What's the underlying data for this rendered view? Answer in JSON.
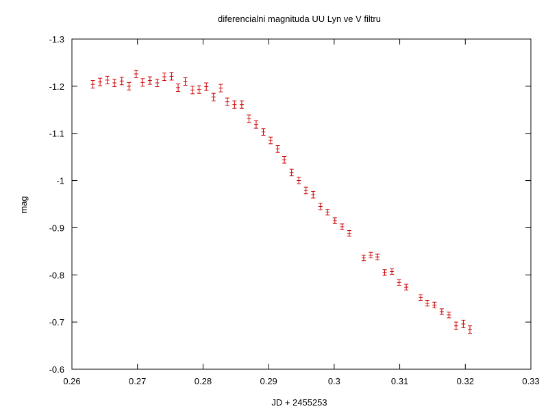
{
  "chart_data": {
    "type": "scatter",
    "title": "diferencialni magnituda UU Lyn ve V filtru",
    "xlabel": "JD + 2455253",
    "ylabel": "mag",
    "xlim": [
      0.26,
      0.33
    ],
    "ylim": [
      -1.3,
      -0.6
    ],
    "y_inverted": true,
    "grid": false,
    "point_color": "#cc0000",
    "x_ticks": [
      0.26,
      0.27,
      0.28,
      0.29,
      0.3,
      0.31,
      0.32,
      0.33
    ],
    "x_tick_labels": [
      "0.26",
      "0.27",
      "0.28",
      "0.29",
      "0.3",
      "0.31",
      "0.32",
      "0.33"
    ],
    "y_ticks": [
      -1.3,
      -1.2,
      -1.1,
      -1.0,
      -0.9,
      -0.8,
      -0.7,
      -0.6
    ],
    "y_tick_labels": [
      "-1.3",
      "-1.2",
      "-1.1",
      "-1",
      "-0.9",
      "-0.8",
      "-0.7",
      "-0.6"
    ],
    "x": [
      0.2632,
      0.2643,
      0.2654,
      0.2665,
      0.2676,
      0.2687,
      0.2698,
      0.2708,
      0.2719,
      0.273,
      0.2741,
      0.2752,
      0.2762,
      0.2773,
      0.2784,
      0.2794,
      0.2805,
      0.2816,
      0.2827,
      0.2837,
      0.2848,
      0.2859,
      0.287,
      0.2881,
      0.2892,
      0.2903,
      0.2914,
      0.2924,
      0.2935,
      0.2946,
      0.2957,
      0.2968,
      0.2979,
      0.299,
      0.3001,
      0.3012,
      0.3023,
      0.3045,
      0.3056,
      0.3066,
      0.3077,
      0.3088,
      0.3099,
      0.311,
      0.3132,
      0.3142,
      0.3153,
      0.3164,
      0.3175,
      0.3186,
      0.3197,
      0.3207
    ],
    "y": [
      -1.204,
      -1.209,
      -1.213,
      -1.207,
      -1.211,
      -1.2,
      -1.226,
      -1.208,
      -1.212,
      -1.207,
      -1.22,
      -1.221,
      -1.197,
      -1.21,
      -1.192,
      -1.193,
      -1.199,
      -1.177,
      -1.196,
      -1.167,
      -1.161,
      -1.161,
      -1.131,
      -1.119,
      -1.103,
      -1.085,
      -1.067,
      -1.044,
      -1.017,
      -1.0,
      -0.979,
      -0.97,
      -0.945,
      -0.933,
      -0.915,
      -0.902,
      -0.888,
      -0.836,
      -0.842,
      -0.838,
      -0.805,
      -0.807,
      -0.784,
      -0.774,
      -0.752,
      -0.74,
      -0.736,
      -0.722,
      -0.715,
      -0.692,
      -0.696,
      -0.684
    ],
    "yerr": [
      0.008,
      0.008,
      0.008,
      0.008,
      0.008,
      0.008,
      0.008,
      0.008,
      0.008,
      0.008,
      0.008,
      0.008,
      0.008,
      0.008,
      0.008,
      0.008,
      0.008,
      0.008,
      0.008,
      0.008,
      0.008,
      0.008,
      0.008,
      0.008,
      0.007,
      0.007,
      0.007,
      0.007,
      0.007,
      0.007,
      0.007,
      0.007,
      0.007,
      0.006,
      0.006,
      0.006,
      0.006,
      0.006,
      0.006,
      0.006,
      0.006,
      0.006,
      0.006,
      0.006,
      0.006,
      0.006,
      0.006,
      0.006,
      0.006,
      0.008,
      0.008,
      0.008
    ]
  }
}
